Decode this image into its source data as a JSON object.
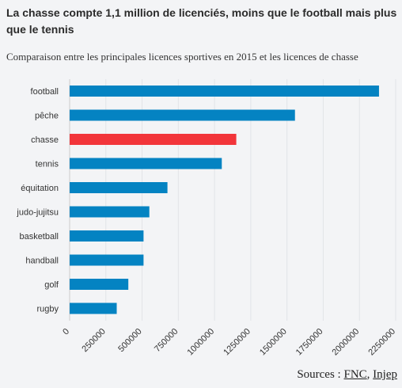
{
  "title": "La chasse compte 1,1 million de licenciés, moins que le football mais plus que le tennis",
  "subtitle": "Comparaison entre les principales licences sportives en 2015 et les licences de chasse",
  "footer": {
    "prefix": "Sources :",
    "sources": [
      "FNC",
      "Injep"
    ]
  },
  "colors": {
    "bar": "#0483c2",
    "highlight": "#f2353a",
    "grid": "#e2e4e8",
    "axis": "#cccccc"
  },
  "chart_data": {
    "type": "bar",
    "orientation": "horizontal",
    "categories": [
      "football",
      "pêche",
      "chasse",
      "tennis",
      "équitation",
      "judo-jujitsu",
      "basketball",
      "handball",
      "golf",
      "rugby"
    ],
    "values": [
      2135000,
      1555000,
      1150000,
      1050000,
      675000,
      550000,
      510000,
      510000,
      405000,
      325000
    ],
    "highlight": "chasse",
    "xlim": [
      0,
      2250000
    ],
    "xticks": [
      "0",
      "250000",
      "500000",
      "750000",
      "1000000",
      "1250000",
      "1500000",
      "1750000",
      "2000000",
      "2250000"
    ],
    "xticks_values": [
      0,
      250000,
      500000,
      750000,
      1000000,
      1250000,
      1500000,
      1750000,
      2000000,
      2250000
    ],
    "grid": true,
    "legend": "none"
  }
}
